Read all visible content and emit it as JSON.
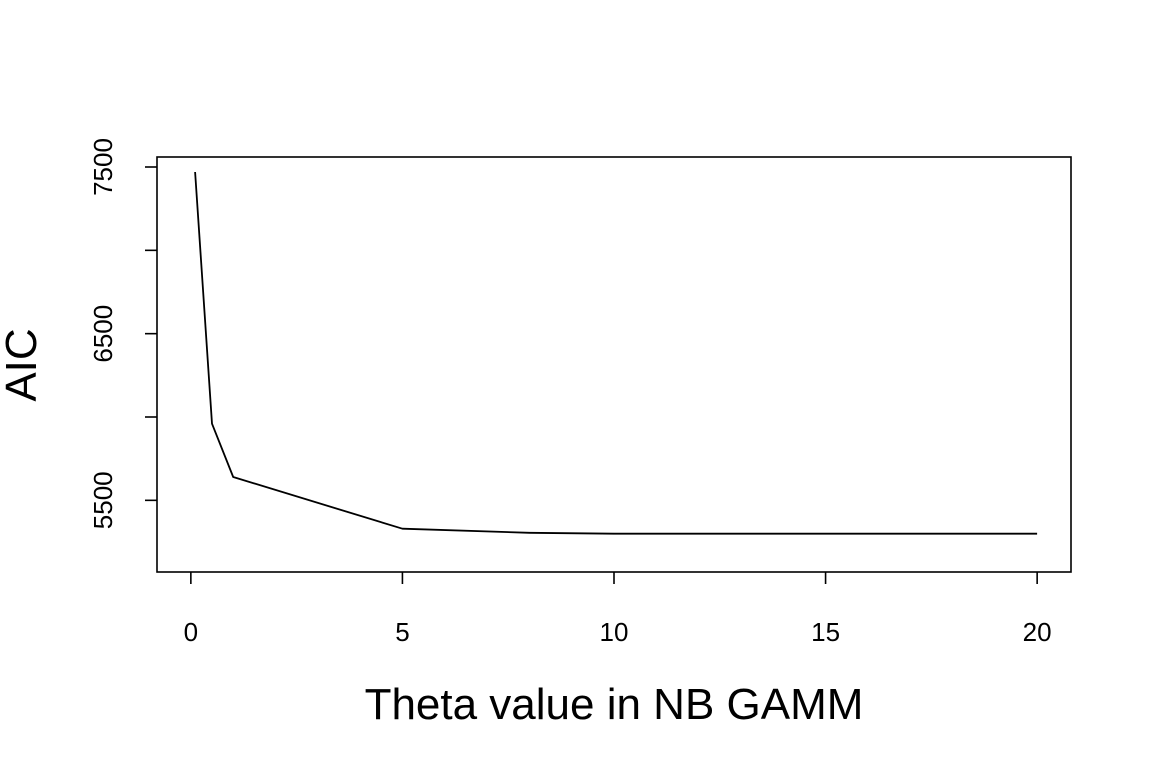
{
  "chart_data": {
    "type": "line",
    "title": "",
    "xlabel": "Theta value in NB GAMM",
    "ylabel": "AIC",
    "xlim": [
      -0.8,
      20.8
    ],
    "ylim": [
      5070,
      7560
    ],
    "xticks": [
      0,
      5,
      10,
      15,
      20
    ],
    "xtick_labels": [
      "0",
      "5",
      "10",
      "15",
      "20"
    ],
    "yticks": [
      5500,
      6000,
      6500,
      7000,
      7500
    ],
    "ytick_labels": [
      "5500",
      "",
      "6500",
      "",
      "7500"
    ],
    "grid": false,
    "legend": "none",
    "series": [
      {
        "x": [
          0.1,
          0.5,
          1,
          5,
          8,
          10,
          20
        ],
        "values": [
          7470,
          5960,
          5640,
          5330,
          5305,
          5300,
          5300
        ]
      }
    ],
    "colors": {
      "line": "#000000",
      "axis": "#000000",
      "background": "#ffffff"
    }
  }
}
